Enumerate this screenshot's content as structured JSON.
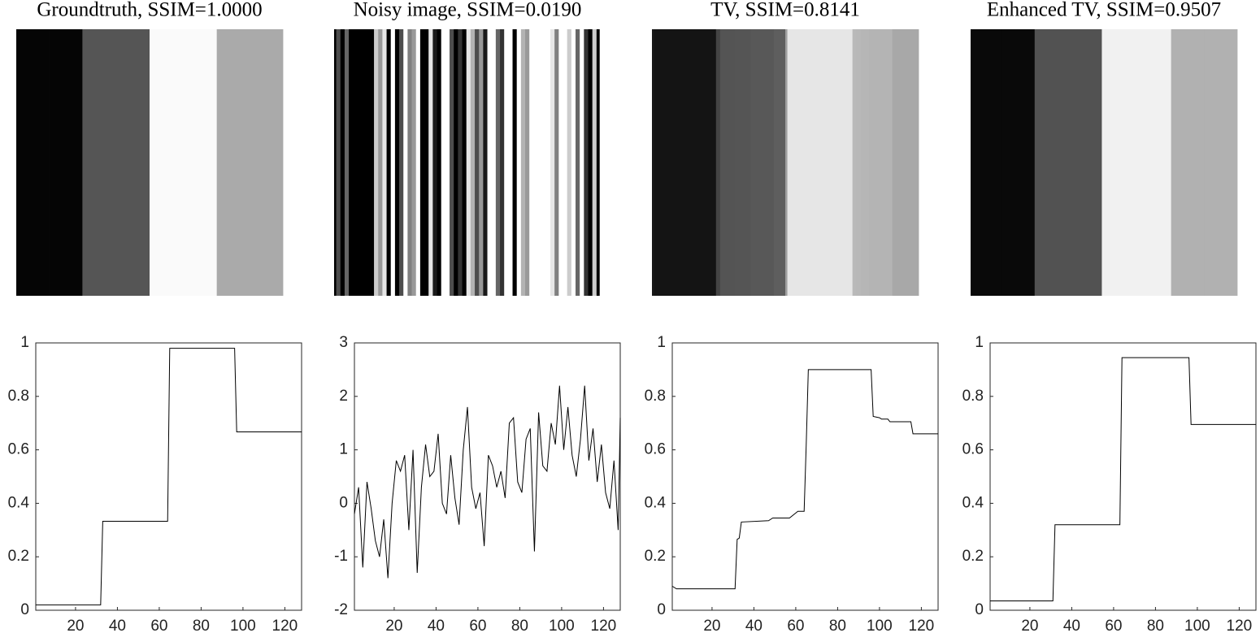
{
  "chart_data": [
    {
      "type": "line",
      "title": "Groundtruth, SSIM=1.0000",
      "color": "#000000",
      "x": [
        1,
        32,
        33,
        64,
        65,
        96,
        97,
        128
      ],
      "values": [
        0.02,
        0.02,
        0.333,
        0.333,
        0.98,
        0.98,
        0.667,
        0.667
      ],
      "xlim": [
        1,
        128
      ],
      "ylim": [
        0,
        1
      ],
      "xticks": [
        20,
        40,
        60,
        80,
        100,
        120
      ],
      "yticks": [
        0,
        0.2,
        0.4,
        0.6,
        0.8,
        1
      ]
    },
    {
      "type": "line",
      "title": "Noisy image, SSIM=0.0190",
      "color": "#000000",
      "x": [
        1,
        3,
        5,
        7,
        9,
        11,
        13,
        15,
        17,
        19,
        21,
        23,
        25,
        27,
        29,
        31,
        33,
        35,
        37,
        39,
        41,
        43,
        45,
        47,
        49,
        51,
        53,
        55,
        57,
        59,
        61,
        63,
        65,
        67,
        69,
        71,
        73,
        75,
        77,
        79,
        81,
        83,
        85,
        87,
        89,
        91,
        93,
        95,
        97,
        99,
        101,
        103,
        105,
        107,
        109,
        111,
        113,
        115,
        117,
        119,
        121,
        123,
        125,
        127,
        128
      ],
      "values": [
        -0.2,
        0.3,
        -1.2,
        0.4,
        -0.1,
        -0.7,
        -1.0,
        -0.3,
        -1.4,
        0.0,
        0.8,
        0.6,
        0.9,
        -0.5,
        1.0,
        -1.3,
        0.3,
        1.1,
        0.5,
        0.6,
        1.3,
        0.0,
        -0.2,
        0.9,
        0.1,
        -0.4,
        1.0,
        1.8,
        0.3,
        -0.1,
        0.2,
        -0.8,
        0.9,
        0.7,
        0.3,
        0.6,
        0.1,
        1.5,
        1.6,
        0.4,
        0.2,
        1.2,
        1.4,
        -0.9,
        1.7,
        0.7,
        0.6,
        1.5,
        1.1,
        2.2,
        1.0,
        1.8,
        0.9,
        0.5,
        1.2,
        2.2,
        0.8,
        1.4,
        0.4,
        1.1,
        0.2,
        -0.1,
        0.8,
        -0.5,
        1.6
      ],
      "xlim": [
        1,
        128
      ],
      "ylim": [
        -2,
        3
      ],
      "xticks": [
        20,
        40,
        60,
        80,
        100,
        120
      ],
      "yticks": [
        -2,
        -1,
        0,
        1,
        2,
        3
      ]
    },
    {
      "type": "line",
      "title": "TV, SSIM=0.8141",
      "color": "#000000",
      "x": [
        1,
        3,
        31,
        32,
        33,
        34,
        47,
        49,
        57,
        61,
        64,
        65,
        66,
        96,
        97,
        100,
        101,
        104,
        105,
        115,
        116,
        128
      ],
      "values": [
        0.09,
        0.08,
        0.08,
        0.265,
        0.27,
        0.33,
        0.335,
        0.345,
        0.345,
        0.37,
        0.37,
        0.62,
        0.9,
        0.9,
        0.725,
        0.72,
        0.715,
        0.715,
        0.705,
        0.705,
        0.66,
        0.66
      ],
      "xlim": [
        1,
        128
      ],
      "ylim": [
        0,
        1
      ],
      "xticks": [
        20,
        40,
        60,
        80,
        100,
        120
      ],
      "yticks": [
        0,
        0.2,
        0.4,
        0.6,
        0.8,
        1
      ]
    },
    {
      "type": "line",
      "title": "Enhanced TV, SSIM=0.9507",
      "color": "#000000",
      "x": [
        1,
        31,
        32,
        63,
        64,
        96,
        97,
        128
      ],
      "values": [
        0.035,
        0.035,
        0.32,
        0.32,
        0.945,
        0.945,
        0.695,
        0.695
      ],
      "xlim": [
        1,
        128
      ],
      "ylim": [
        0,
        1
      ],
      "xticks": [
        20,
        40,
        60,
        80,
        100,
        120
      ],
      "yticks": [
        0,
        0.2,
        0.4,
        0.6,
        0.8,
        1
      ]
    }
  ]
}
